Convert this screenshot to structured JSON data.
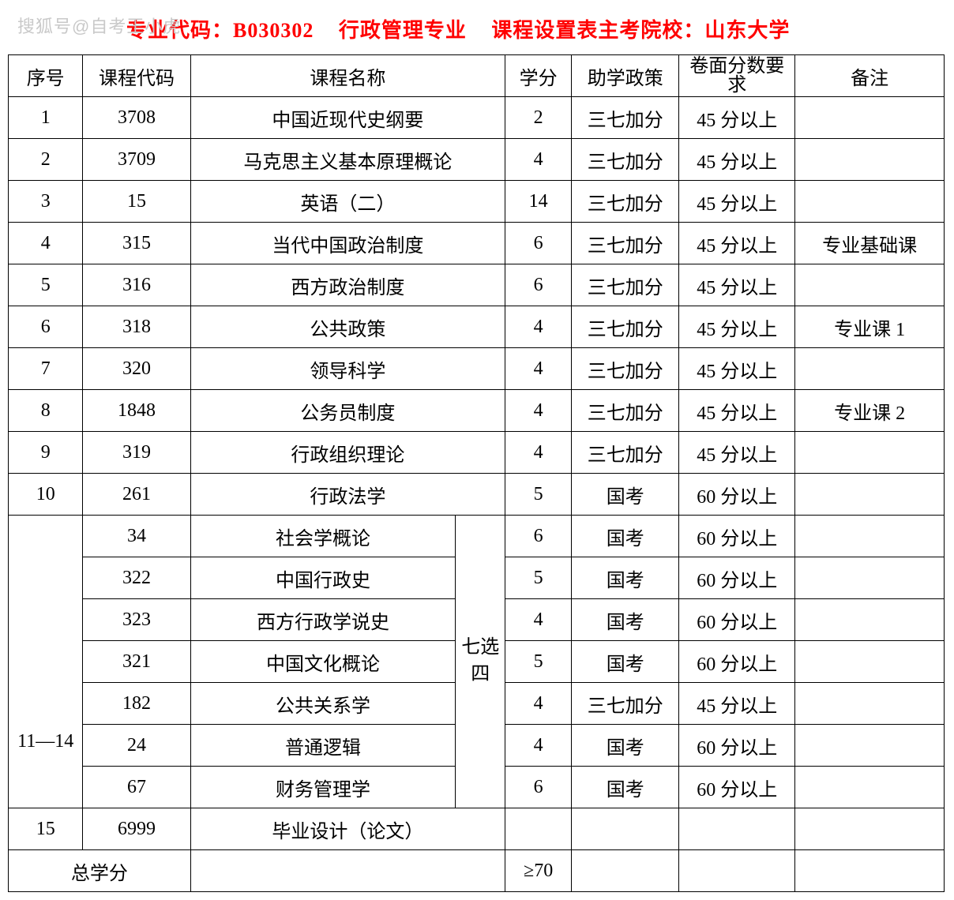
{
  "watermark": "搜狐号@自考王小虎",
  "title": {
    "part1": "专业代码：B030302",
    "part2": "行政管理专业",
    "part3": "课程设置表主考院校：山东大学"
  },
  "headers": {
    "xh": "序号",
    "code": "课程代码",
    "name": "课程名称",
    "credit": "学分",
    "policy": "助学政策",
    "score": "卷面分数要求",
    "note": "备注"
  },
  "rows": [
    {
      "xh": "1",
      "code": "3708",
      "name": "中国近现代史纲要",
      "credit": "2",
      "policy": "三七加分",
      "score": "45 分以上",
      "note": ""
    },
    {
      "xh": "2",
      "code": "3709",
      "name": "马克思主义基本原理概论",
      "credit": "4",
      "policy": "三七加分",
      "score": "45 分以上",
      "note": ""
    },
    {
      "xh": "3",
      "code": "15",
      "name": "英语（二）",
      "credit": "14",
      "policy": "三七加分",
      "score": "45 分以上",
      "note": ""
    },
    {
      "xh": "4",
      "code": "315",
      "name": "当代中国政治制度",
      "credit": "6",
      "policy": "三七加分",
      "score": "45 分以上",
      "note": "专业基础课"
    },
    {
      "xh": "5",
      "code": "316",
      "name": "西方政治制度",
      "credit": "6",
      "policy": "三七加分",
      "score": "45 分以上",
      "note": ""
    },
    {
      "xh": "6",
      "code": "318",
      "name": "公共政策",
      "credit": "4",
      "policy": "三七加分",
      "score": "45 分以上",
      "note": "专业课 1"
    },
    {
      "xh": "7",
      "code": "320",
      "name": "领导科学",
      "credit": "4",
      "policy": "三七加分",
      "score": "45 分以上",
      "note": ""
    },
    {
      "xh": "8",
      "code": "1848",
      "name": "公务员制度",
      "credit": "4",
      "policy": "三七加分",
      "score": "45 分以上",
      "note": "专业课 2"
    },
    {
      "xh": "9",
      "code": "319",
      "name": "行政组织理论",
      "credit": "4",
      "policy": "三七加分",
      "score": "45 分以上",
      "note": ""
    },
    {
      "xh": "10",
      "code": "261",
      "name": "行政法学",
      "credit": "5",
      "policy": "国考",
      "score": "60 分以上",
      "note": ""
    }
  ],
  "elective": {
    "xh": "11—14",
    "selector": "七选四",
    "rows": [
      {
        "code": "34",
        "name": "社会学概论",
        "credit": "6",
        "policy": "国考",
        "score": "60 分以上",
        "note": ""
      },
      {
        "code": "322",
        "name": "中国行政史",
        "credit": "5",
        "policy": "国考",
        "score": "60 分以上",
        "note": ""
      },
      {
        "code": "323",
        "name": "西方行政学说史",
        "credit": "4",
        "policy": "国考",
        "score": "60 分以上",
        "note": ""
      },
      {
        "code": "321",
        "name": "中国文化概论",
        "credit": "5",
        "policy": "国考",
        "score": "60 分以上",
        "note": ""
      },
      {
        "code": "182",
        "name": "公共关系学",
        "credit": "4",
        "policy": "三七加分",
        "score": "45 分以上",
        "note": ""
      },
      {
        "code": "24",
        "name": "普通逻辑",
        "credit": "4",
        "policy": "国考",
        "score": "60 分以上",
        "note": ""
      },
      {
        "code": "67",
        "name": "财务管理学",
        "credit": "6",
        "policy": "国考",
        "score": "60 分以上",
        "note": ""
      }
    ]
  },
  "row15": {
    "xh": "15",
    "code": "6999",
    "name": "毕业设计（论文）",
    "credit": "",
    "policy": "",
    "score": "",
    "note": ""
  },
  "total": {
    "label": "总学分",
    "credit": "≥70"
  },
  "colors": {
    "title": "#ff0000",
    "border": "#000000",
    "background": "#ffffff",
    "watermark": "#c9c9c9"
  },
  "fontsize": {
    "title": 26,
    "cell": 24
  }
}
